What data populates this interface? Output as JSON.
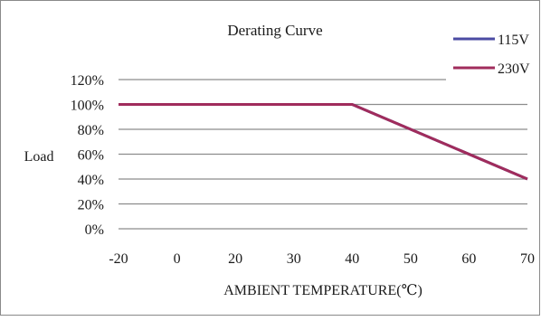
{
  "chart_data": {
    "type": "line",
    "title": "Derating Curve",
    "xlabel": "AMBIENT TEMPERATURE(℃)",
    "ylabel": "Load",
    "categories": [
      "-20",
      "0",
      "20",
      "30",
      "40",
      "50",
      "60",
      "70"
    ],
    "y_ticks": [
      "0%",
      "20%",
      "40%",
      "60%",
      "80%",
      "100%",
      "120%"
    ],
    "ylim": [
      0,
      120
    ],
    "grid": true,
    "legend_position": "top-right",
    "series": [
      {
        "name": "115V",
        "color": "#4b4ba3",
        "points": [
          {
            "x": "-20",
            "y": 100
          },
          {
            "x": "40",
            "y": 100
          },
          {
            "x": "70",
            "y": 40
          }
        ]
      },
      {
        "name": "230V",
        "color": "#a02c5c",
        "points": [
          {
            "x": "-20",
            "y": 100
          },
          {
            "x": "40",
            "y": 100
          },
          {
            "x": "70",
            "y": 40
          }
        ]
      }
    ]
  }
}
